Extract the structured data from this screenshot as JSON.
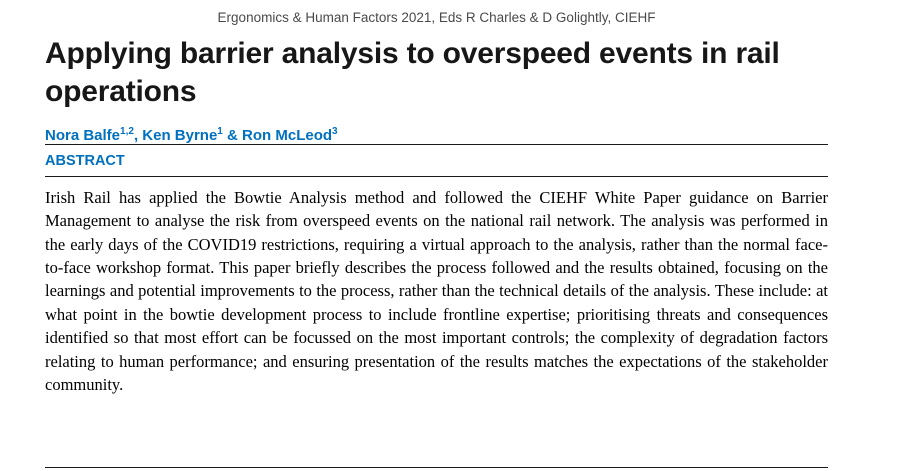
{
  "header": {
    "conference_line": "Ergonomics & Human Factors 2021, Eds R Charles & D Golightly, CIEHF"
  },
  "title": "Applying barrier analysis to overspeed events in rail operations",
  "authors": {
    "segments": [
      {
        "text": "Nora Balfe",
        "sup": "1,2"
      },
      {
        "text": ", Ken Byrne",
        "sup": "1"
      },
      {
        "text": " & Ron McLeod",
        "sup": "3"
      }
    ]
  },
  "abstract": {
    "heading": "ABSTRACT",
    "text": "Irish Rail has applied the Bowtie Analysis method and followed the CIEHF White Paper guidance on Barrier Management to analyse the risk from overspeed events on the national rail network. The analysis was performed in the early days of the COVID19 restrictions, requiring a virtual approach to the analysis, rather than the normal face-to-face workshop format. This paper briefly describes the process followed and the results obtained, focusing on the learnings and potential improvements to the process, rather than the technical details of the analysis. These include: at what point in the bowtie development process to include frontline expertise; prioritising threats and consequences identified so that most effort can be focussed on the most important controls; the complexity of degradation factors relating to human performance; and ensuring presentation of the results matches the expectations of the stakeholder community."
  },
  "colors": {
    "accent_blue": "#0070C0",
    "header_gray": "#4a4a4a",
    "text_black": "#171717"
  }
}
